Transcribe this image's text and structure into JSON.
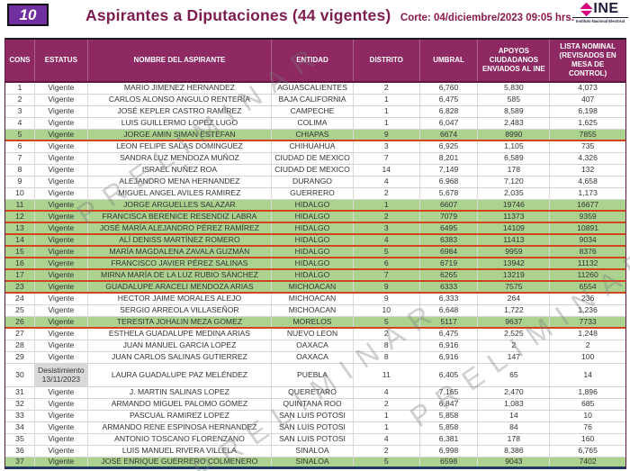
{
  "page": {
    "badge": "10",
    "title": "Aspirantes a Diputaciones  (44 vigentes)",
    "corte": "Corte: 04/diciembre/2023 09:05 hrs.",
    "logo": {
      "text": "INE",
      "subtext": "Instituto Nacional Electoral"
    },
    "watermark": "PRELIMINAR"
  },
  "colors": {
    "header_bg": "#8E2963",
    "title_color": "#7D1C4E",
    "badge_bg": "#7030A0",
    "logo_pink": "#D5007F",
    "highlight_green": "#ABD28F",
    "separator_red": "#D2441D",
    "bottom_navy": "#203864",
    "status_gray": "#D9D9D9"
  },
  "table": {
    "columns": [
      "CONS",
      "ESTATUS",
      "NOMBRE DEL ASPIRANTE",
      "ENTIDAD",
      "DISTRITO",
      "UMBRAL",
      "APOYOS CIUDADANOS ENVIADOS AL INE",
      "LISTA NOMINAL (REVISADOS EN MESA DE CONTROL)"
    ],
    "rows": [
      {
        "cons": "1",
        "estatus": "Vigente",
        "nombre": "MARIO JIMENEZ HERNANDEZ",
        "entidad": "AGUASCALIENTES",
        "distrito": "2",
        "umbral": "6,760",
        "apoyos": "5,830",
        "lista": "4,073",
        "green": false
      },
      {
        "cons": "2",
        "estatus": "Vigente",
        "nombre": "CARLOS ALONSO ANGULO RENTERÍA",
        "entidad": "BAJA CALIFORNIA",
        "distrito": "1",
        "umbral": "6,475",
        "apoyos": "585",
        "lista": "407",
        "green": false
      },
      {
        "cons": "3",
        "estatus": "Vigente",
        "nombre": "JOSÉ KEPLER CASTRO RAMÍREZ",
        "entidad": "CAMPECHE",
        "distrito": "1",
        "umbral": "6,828",
        "apoyos": "8,589",
        "lista": "6,198",
        "green": false
      },
      {
        "cons": "4",
        "estatus": "Vigente",
        "nombre": "LUIS GUILLERMO LOPEZ LUGO",
        "entidad": "COLIMA",
        "distrito": "1",
        "umbral": "6,047",
        "apoyos": "2,483",
        "lista": "1,625",
        "green": false
      },
      {
        "cons": "5",
        "estatus": "Vigente",
        "nombre": "JORGE AMIN SIMAN ESTEFAN",
        "entidad": "CHIAPAS",
        "distrito": "9",
        "umbral": "6674",
        "apoyos": "8990",
        "lista": "7855",
        "green": true
      },
      {
        "cons": "6",
        "estatus": "Vigente",
        "nombre": "LEON FELIPE SALAS DOMINGUEZ",
        "entidad": "CHIHUAHUA",
        "distrito": "3",
        "umbral": "6,925",
        "apoyos": "1,105",
        "lista": "735",
        "green": false
      },
      {
        "cons": "7",
        "estatus": "Vigente",
        "nombre": "SANDRA LUZ MENDOZA MUÑOZ",
        "entidad": "CIUDAD DE MEXICO",
        "distrito": "7",
        "umbral": "8,201",
        "apoyos": "6,589",
        "lista": "4,326",
        "green": false
      },
      {
        "cons": "8",
        "estatus": "Vigente",
        "nombre": "ISRAEL NUÑEZ ROA",
        "entidad": "CIUDAD DE MEXICO",
        "distrito": "14",
        "umbral": "7,149",
        "apoyos": "178",
        "lista": "132",
        "green": false
      },
      {
        "cons": "9",
        "estatus": "Vigente",
        "nombre": "ALEJANDRO MENA HERNANDEZ",
        "entidad": "DURANGO",
        "distrito": "4",
        "umbral": "6,968",
        "apoyos": "7,120",
        "lista": "4,658",
        "green": false
      },
      {
        "cons": "10",
        "estatus": "Vigente",
        "nombre": "MIGUEL ANGEL AVILES RAMIREZ",
        "entidad": "GUERRERO",
        "distrito": "2",
        "umbral": "5,678",
        "apoyos": "2,035",
        "lista": "1,173",
        "green": false
      },
      {
        "cons": "11",
        "estatus": "Vigente",
        "nombre": "JORGE ARGUELLES SALAZAR",
        "entidad": "HIDALGO",
        "distrito": "1",
        "umbral": "6607",
        "apoyos": "19746",
        "lista": "16677",
        "green": true
      },
      {
        "cons": "12",
        "estatus": "Vigente",
        "nombre": "FRANCISCA BERENICE RESENDIZ LABRA",
        "entidad": "HIDALGO",
        "distrito": "2",
        "umbral": "7079",
        "apoyos": "11373",
        "lista": "9359",
        "green": true
      },
      {
        "cons": "13",
        "estatus": "Vigente",
        "nombre": "JOSÉ MARÍA ALEJANDRO PÉREZ RAMÍREZ",
        "entidad": "HIDALGO",
        "distrito": "3",
        "umbral": "6495",
        "apoyos": "14109",
        "lista": "10891",
        "green": true
      },
      {
        "cons": "14",
        "estatus": "Vigente",
        "nombre": "ALÍ DENISS MARTÍNEZ ROMERO",
        "entidad": "HIDALGO",
        "distrito": "4",
        "umbral": "6383",
        "apoyos": "11413",
        "lista": "9034",
        "green": true
      },
      {
        "cons": "15",
        "estatus": "Vigente",
        "nombre": "MARÍA MAGDALENA ZAVALA GUZMÁN",
        "entidad": "HIDALGO",
        "distrito": "5",
        "umbral": "6984",
        "apoyos": "9959",
        "lista": "8376",
        "green": true
      },
      {
        "cons": "16",
        "estatus": "Vigente",
        "nombre": "FRANCISCO JAVIER PÉREZ SALINAS",
        "entidad": "HIDALGO",
        "distrito": "6",
        "umbral": "6719",
        "apoyos": "13942",
        "lista": "11132",
        "green": true
      },
      {
        "cons": "17",
        "estatus": "Vigente",
        "nombre": "MIRNA MARÍA DE LA LUZ RUBIO SÁNCHEZ",
        "entidad": "HIDALGO",
        "distrito": "7",
        "umbral": "6265",
        "apoyos": "13219",
        "lista": "11260",
        "green": true
      },
      {
        "cons": "23",
        "estatus": "Vigente",
        "nombre": "GUADALUPE ARACELI MENDOZA ARIAS",
        "entidad": "MICHOACAN",
        "distrito": "9",
        "umbral": "6333",
        "apoyos": "7575",
        "lista": "6554",
        "green": true
      },
      {
        "cons": "24",
        "estatus": "Vigente",
        "nombre": "HECTOR JAIME MORALES ALEJO",
        "entidad": "MICHOACAN",
        "distrito": "9",
        "umbral": "6,333",
        "apoyos": "264",
        "lista": "236",
        "green": false
      },
      {
        "cons": "25",
        "estatus": "Vigente",
        "nombre": "SERGIO ARREOLA VILLASEÑOR",
        "entidad": "MICHOACAN",
        "distrito": "10",
        "umbral": "6,648",
        "apoyos": "1,722",
        "lista": "1,236",
        "green": false
      },
      {
        "cons": "26",
        "estatus": "Vigente",
        "nombre": "TERESITA JOHALIN MEZA GOMEZ",
        "entidad": "MORELOS",
        "distrito": "5",
        "umbral": "5117",
        "apoyos": "9637",
        "lista": "7733",
        "green": true
      },
      {
        "cons": "27",
        "estatus": "Vigente",
        "nombre": "ESTHELA GUADALUPE MEDINA ARIAS",
        "entidad": "NUEVO LEON",
        "distrito": "2",
        "umbral": "6,475",
        "apoyos": "2,525",
        "lista": "1,248",
        "green": false
      },
      {
        "cons": "28",
        "estatus": "Vigente",
        "nombre": "JUAN MANUEL GARCIA LOPEZ",
        "entidad": "OAXACA",
        "distrito": "8",
        "umbral": "6,916",
        "apoyos": "2",
        "lista": "2",
        "green": false
      },
      {
        "cons": "29",
        "estatus": "Vigente",
        "nombre": "JUAN CARLOS SALINAS GUTIERREZ",
        "entidad": "OAXACA",
        "distrito": "8",
        "umbral": "6,916",
        "apoyos": "147",
        "lista": "100",
        "green": false
      },
      {
        "cons": "30",
        "estatus": "Desistimiento",
        "estatus_fecha": "13/11/2023",
        "nombre": "LAURA GUADALUPE PAZ MELÉNDEZ",
        "entidad": "PUEBLA",
        "distrito": "11",
        "umbral": "6,405",
        "apoyos": "65",
        "lista": "14",
        "green": false,
        "tall": true,
        "gray_status": true
      },
      {
        "cons": "31",
        "estatus": "Vigente",
        "nombre": "J. MARTIN SALINAS LOPEZ",
        "entidad": "QUERETARO",
        "distrito": "4",
        "umbral": "7,165",
        "apoyos": "2,470",
        "lista": "1,896",
        "green": false
      },
      {
        "cons": "32",
        "estatus": "Vigente",
        "nombre": "ARMANDO MIGUEL PALOMO GÓMEZ",
        "entidad": "QUINTANA ROO",
        "distrito": "2",
        "umbral": "6,847",
        "apoyos": "1,083",
        "lista": "685",
        "green": false
      },
      {
        "cons": "33",
        "estatus": "Vigente",
        "nombre": "PASCUAL RAMIREZ LOPEZ",
        "entidad": "SAN LUIS POTOSI",
        "distrito": "1",
        "umbral": "5,858",
        "apoyos": "14",
        "lista": "10",
        "green": false
      },
      {
        "cons": "34",
        "estatus": "Vigente",
        "nombre": "ARMANDO RENE ESPINOSA HERNANDEZ",
        "entidad": "SAN LUIS POTOSI",
        "distrito": "1",
        "umbral": "5,858",
        "apoyos": "84",
        "lista": "76",
        "green": false
      },
      {
        "cons": "35",
        "estatus": "Vigente",
        "nombre": "ANTONIO TOSCANO FLORENZANO",
        "entidad": "SAN LUIS POTOSI",
        "distrito": "4",
        "umbral": "6,381",
        "apoyos": "178",
        "lista": "160",
        "green": false
      },
      {
        "cons": "36",
        "estatus": "Vigente",
        "nombre": "LUIS MANUEL RIVERA VILLELA",
        "entidad": "SINALOA",
        "distrito": "2",
        "umbral": "6,998",
        "apoyos": "8,386",
        "lista": "6,765",
        "green": false
      },
      {
        "cons": "37",
        "estatus": "Vigente",
        "nombre": "JOSÉ ENRIQUE GUERRERO COLMENERO",
        "entidad": "SINALOA",
        "distrito": "5",
        "umbral": "6598",
        "apoyos": "9043",
        "lista": "7402",
        "green": true,
        "last": true
      }
    ]
  }
}
